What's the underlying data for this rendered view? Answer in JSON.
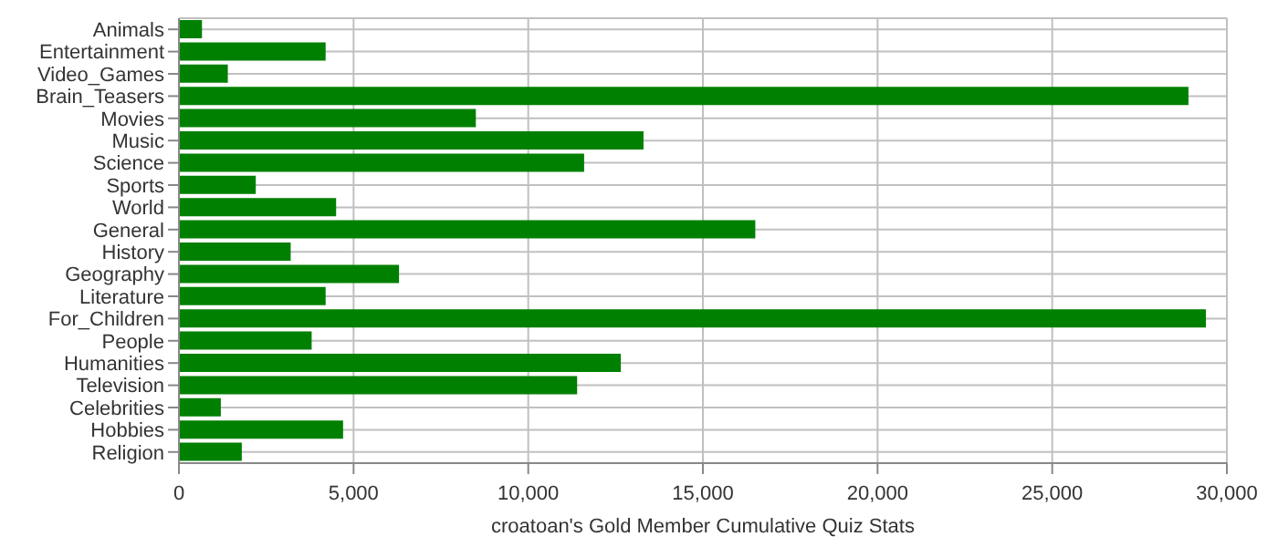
{
  "chart_data": {
    "type": "bar",
    "orientation": "horizontal",
    "xlabel": "croatoan's Gold Member Cumulative Quiz Stats",
    "categories": [
      "Animals",
      "Entertainment",
      "Video_Games",
      "Brain_Teasers",
      "Movies",
      "Music",
      "Science",
      "Sports",
      "World",
      "General",
      "History",
      "Geography",
      "Literature",
      "For_Children",
      "People",
      "Humanities",
      "Television",
      "Celebrities",
      "Hobbies",
      "Religion"
    ],
    "values": [
      660,
      4200,
      1400,
      28900,
      8500,
      13300,
      11600,
      2200,
      4500,
      16500,
      3200,
      6300,
      4200,
      29400,
      3800,
      12650,
      11400,
      1200,
      4700,
      1800
    ],
    "color": "#008000",
    "xlim": [
      0,
      30000
    ],
    "xticks": [
      0,
      {
        "value": 5000,
        "label": "5,000"
      },
      {
        "value": 10000,
        "label": "10,000"
      },
      {
        "value": 15000,
        "label": "15,000"
      },
      {
        "value": 20000,
        "label": "20,000"
      },
      {
        "value": 25000,
        "label": "25,000"
      },
      {
        "value": 30000,
        "label": "30,000"
      }
    ],
    "grid": true
  }
}
